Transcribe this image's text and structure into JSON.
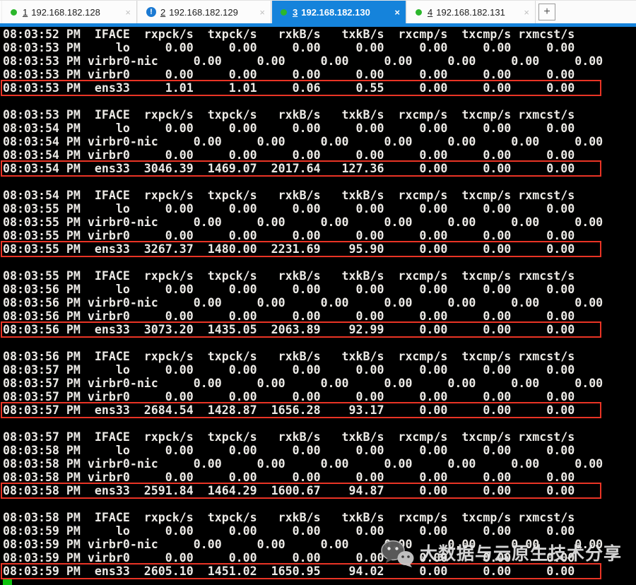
{
  "tabs": [
    {
      "number": "1",
      "ip": "192.168.182.128",
      "status": "connected",
      "active": false,
      "close_label": "×"
    },
    {
      "number": "2",
      "ip": "192.168.182.129",
      "status": "alert",
      "active": false,
      "close_label": "×"
    },
    {
      "number": "3",
      "ip": "192.168.182.130",
      "status": "connected",
      "active": true,
      "close_label": "×"
    },
    {
      "number": "4",
      "ip": "192.168.182.131",
      "status": "connected",
      "active": false,
      "close_label": "×"
    }
  ],
  "new_tab_label": "+",
  "alert_icon_glyph": "!",
  "terminal": {
    "columns": [
      "IFACE",
      "rxpck/s",
      "txpck/s",
      "rxkB/s",
      "txkB/s",
      "rxcmp/s",
      "txcmp/s",
      "rxmcst/s"
    ],
    "blocks": [
      {
        "header_time": "08:03:52 PM",
        "rows": [
          {
            "time": "08:03:53 PM",
            "iface": "lo",
            "values": [
              "0.00",
              "0.00",
              "0.00",
              "0.00",
              "0.00",
              "0.00",
              "0.00"
            ],
            "highlight": false
          },
          {
            "time": "08:03:53 PM",
            "iface": "virbr0-nic",
            "values": [
              "0.00",
              "0.00",
              "0.00",
              "0.00",
              "0.00",
              "0.00",
              "0.00"
            ],
            "highlight": false
          },
          {
            "time": "08:03:53 PM",
            "iface": "virbr0",
            "values": [
              "0.00",
              "0.00",
              "0.00",
              "0.00",
              "0.00",
              "0.00",
              "0.00"
            ],
            "highlight": false
          },
          {
            "time": "08:03:53 PM",
            "iface": "ens33",
            "values": [
              "1.01",
              "1.01",
              "0.06",
              "0.55",
              "0.00",
              "0.00",
              "0.00"
            ],
            "highlight": true
          }
        ]
      },
      {
        "header_time": "08:03:53 PM",
        "rows": [
          {
            "time": "08:03:54 PM",
            "iface": "lo",
            "values": [
              "0.00",
              "0.00",
              "0.00",
              "0.00",
              "0.00",
              "0.00",
              "0.00"
            ],
            "highlight": false
          },
          {
            "time": "08:03:54 PM",
            "iface": "virbr0-nic",
            "values": [
              "0.00",
              "0.00",
              "0.00",
              "0.00",
              "0.00",
              "0.00",
              "0.00"
            ],
            "highlight": false
          },
          {
            "time": "08:03:54 PM",
            "iface": "virbr0",
            "values": [
              "0.00",
              "0.00",
              "0.00",
              "0.00",
              "0.00",
              "0.00",
              "0.00"
            ],
            "highlight": false
          },
          {
            "time": "08:03:54 PM",
            "iface": "ens33",
            "values": [
              "3046.39",
              "1469.07",
              "2017.64",
              "127.36",
              "0.00",
              "0.00",
              "0.00"
            ],
            "highlight": true
          }
        ]
      },
      {
        "header_time": "08:03:54 PM",
        "rows": [
          {
            "time": "08:03:55 PM",
            "iface": "lo",
            "values": [
              "0.00",
              "0.00",
              "0.00",
              "0.00",
              "0.00",
              "0.00",
              "0.00"
            ],
            "highlight": false
          },
          {
            "time": "08:03:55 PM",
            "iface": "virbr0-nic",
            "values": [
              "0.00",
              "0.00",
              "0.00",
              "0.00",
              "0.00",
              "0.00",
              "0.00"
            ],
            "highlight": false
          },
          {
            "time": "08:03:55 PM",
            "iface": "virbr0",
            "values": [
              "0.00",
              "0.00",
              "0.00",
              "0.00",
              "0.00",
              "0.00",
              "0.00"
            ],
            "highlight": false
          },
          {
            "time": "08:03:55 PM",
            "iface": "ens33",
            "values": [
              "3267.37",
              "1480.00",
              "2231.69",
              "95.90",
              "0.00",
              "0.00",
              "0.00"
            ],
            "highlight": true
          }
        ]
      },
      {
        "header_time": "08:03:55 PM",
        "rows": [
          {
            "time": "08:03:56 PM",
            "iface": "lo",
            "values": [
              "0.00",
              "0.00",
              "0.00",
              "0.00",
              "0.00",
              "0.00",
              "0.00"
            ],
            "highlight": false
          },
          {
            "time": "08:03:56 PM",
            "iface": "virbr0-nic",
            "values": [
              "0.00",
              "0.00",
              "0.00",
              "0.00",
              "0.00",
              "0.00",
              "0.00"
            ],
            "highlight": false
          },
          {
            "time": "08:03:56 PM",
            "iface": "virbr0",
            "values": [
              "0.00",
              "0.00",
              "0.00",
              "0.00",
              "0.00",
              "0.00",
              "0.00"
            ],
            "highlight": false
          },
          {
            "time": "08:03:56 PM",
            "iface": "ens33",
            "values": [
              "3073.20",
              "1435.05",
              "2063.89",
              "92.99",
              "0.00",
              "0.00",
              "0.00"
            ],
            "highlight": true
          }
        ]
      },
      {
        "header_time": "08:03:56 PM",
        "rows": [
          {
            "time": "08:03:57 PM",
            "iface": "lo",
            "values": [
              "0.00",
              "0.00",
              "0.00",
              "0.00",
              "0.00",
              "0.00",
              "0.00"
            ],
            "highlight": false
          },
          {
            "time": "08:03:57 PM",
            "iface": "virbr0-nic",
            "values": [
              "0.00",
              "0.00",
              "0.00",
              "0.00",
              "0.00",
              "0.00",
              "0.00"
            ],
            "highlight": false
          },
          {
            "time": "08:03:57 PM",
            "iface": "virbr0",
            "values": [
              "0.00",
              "0.00",
              "0.00",
              "0.00",
              "0.00",
              "0.00",
              "0.00"
            ],
            "highlight": false
          },
          {
            "time": "08:03:57 PM",
            "iface": "ens33",
            "values": [
              "2684.54",
              "1428.87",
              "1656.28",
              "93.17",
              "0.00",
              "0.00",
              "0.00"
            ],
            "highlight": true
          }
        ]
      },
      {
        "header_time": "08:03:57 PM",
        "rows": [
          {
            "time": "08:03:58 PM",
            "iface": "lo",
            "values": [
              "0.00",
              "0.00",
              "0.00",
              "0.00",
              "0.00",
              "0.00",
              "0.00"
            ],
            "highlight": false
          },
          {
            "time": "08:03:58 PM",
            "iface": "virbr0-nic",
            "values": [
              "0.00",
              "0.00",
              "0.00",
              "0.00",
              "0.00",
              "0.00",
              "0.00"
            ],
            "highlight": false
          },
          {
            "time": "08:03:58 PM",
            "iface": "virbr0",
            "values": [
              "0.00",
              "0.00",
              "0.00",
              "0.00",
              "0.00",
              "0.00",
              "0.00"
            ],
            "highlight": false
          },
          {
            "time": "08:03:58 PM",
            "iface": "ens33",
            "values": [
              "2591.84",
              "1464.29",
              "1600.67",
              "94.87",
              "0.00",
              "0.00",
              "0.00"
            ],
            "highlight": true
          }
        ]
      },
      {
        "header_time": "08:03:58 PM",
        "rows": [
          {
            "time": "08:03:59 PM",
            "iface": "lo",
            "values": [
              "0.00",
              "0.00",
              "0.00",
              "0.00",
              "0.00",
              "0.00",
              "0.00"
            ],
            "highlight": false
          },
          {
            "time": "08:03:59 PM",
            "iface": "virbr0-nic",
            "values": [
              "0.00",
              "0.00",
              "0.00",
              "0.00",
              "0.00",
              "0.00",
              "0.00"
            ],
            "highlight": false
          },
          {
            "time": "08:03:59 PM",
            "iface": "virbr0",
            "values": [
              "0.00",
              "0.00",
              "0.00",
              "0.00",
              "0.00",
              "0.00",
              "0.00"
            ],
            "highlight": false
          },
          {
            "time": "08:03:59 PM",
            "iface": "ens33",
            "values": [
              "2605.10",
              "1451.02",
              "1650.95",
              "94.02",
              "0.00",
              "0.00",
              "0.00"
            ],
            "highlight": true
          }
        ]
      }
    ]
  },
  "watermark": {
    "text": "大数据与云原生技术分享",
    "icon": "wechat-logo-icon"
  },
  "colors": {
    "accent": "#1583db",
    "highlight_red": "#e93425",
    "status_green": "#2cb72c",
    "alert_blue": "#1b79d2",
    "cursor_green": "#0ec20e",
    "terminal_text": "#eceae6"
  }
}
